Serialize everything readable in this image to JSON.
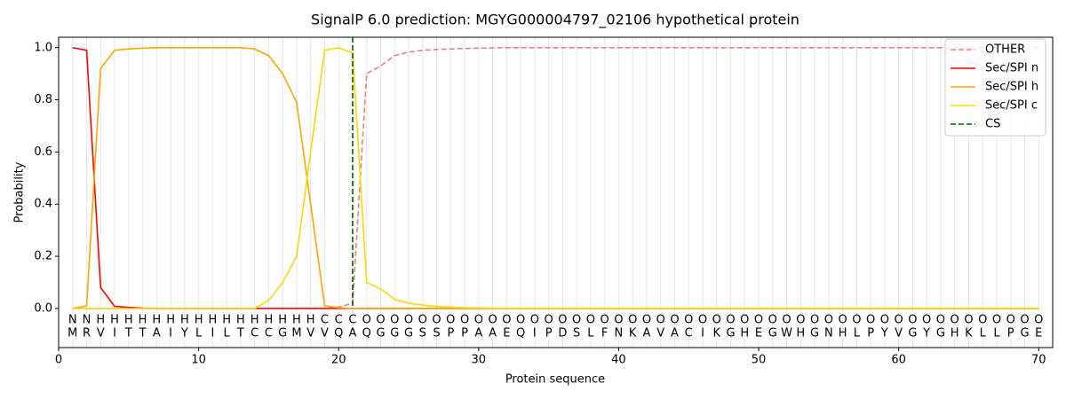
{
  "chart_data": {
    "type": "line",
    "title": "SignalP 6.0 prediction: MGYG000004797_02106 hypothetical protein",
    "xlabel": "Protein sequence",
    "ylabel": "Probability",
    "x": [
      1,
      2,
      3,
      4,
      5,
      6,
      7,
      8,
      9,
      10,
      11,
      12,
      13,
      14,
      15,
      16,
      17,
      18,
      19,
      20,
      21,
      22,
      23,
      24,
      25,
      26,
      27,
      28,
      29,
      30,
      31,
      32,
      33,
      34,
      35,
      36,
      37,
      38,
      39,
      40,
      41,
      42,
      43,
      44,
      45,
      46,
      47,
      48,
      49,
      50,
      51,
      52,
      53,
      54,
      55,
      56,
      57,
      58,
      59,
      60,
      61,
      62,
      63,
      64,
      65,
      66,
      67,
      68,
      69,
      70
    ],
    "sequence": [
      "M",
      "R",
      "V",
      "I",
      "T",
      "T",
      "A",
      "I",
      "Y",
      "L",
      "I",
      "L",
      "T",
      "C",
      "C",
      "G",
      "M",
      "V",
      "V",
      "Q",
      "A",
      "Q",
      "G",
      "G",
      "G",
      "S",
      "S",
      "P",
      "P",
      "A",
      "A",
      "E",
      "Q",
      "I",
      "P",
      "D",
      "S",
      "L",
      "F",
      "N",
      "K",
      "A",
      "V",
      "A",
      "C",
      "I",
      "K",
      "G",
      "H",
      "E",
      "G",
      "W",
      "H",
      "G",
      "N",
      "H",
      "L",
      "P",
      "Y",
      "V",
      "G",
      "Y",
      "G",
      "H",
      "K",
      "L",
      "L",
      "P",
      "G",
      "E"
    ],
    "labels": [
      "N",
      "N",
      "H",
      "H",
      "H",
      "H",
      "H",
      "H",
      "H",
      "H",
      "H",
      "H",
      "H",
      "H",
      "H",
      "H",
      "H",
      "H",
      "C",
      "C",
      "C",
      "O",
      "O",
      "O",
      "O",
      "O",
      "O",
      "O",
      "O",
      "O",
      "O",
      "O",
      "O",
      "O",
      "O",
      "O",
      "O",
      "O",
      "O",
      "O",
      "O",
      "O",
      "O",
      "O",
      "O",
      "O",
      "O",
      "O",
      "O",
      "O",
      "O",
      "O",
      "O",
      "O",
      "O",
      "O",
      "O",
      "O",
      "O",
      "O",
      "O",
      "O",
      "O",
      "O",
      "O",
      "O",
      "O",
      "O",
      "O",
      "O"
    ],
    "label_colors": {
      "N": "#ff0000",
      "H": "#ffa500",
      "C": "#ffd700",
      "O": "#808080"
    },
    "series": [
      {
        "name": "OTHER",
        "color": "#f08080",
        "dashed": true,
        "values": [
          0,
          0,
          0,
          0,
          0,
          0,
          0,
          0,
          0,
          0,
          0,
          0,
          0,
          0,
          0,
          0,
          0,
          0,
          0,
          0.005,
          0.02,
          0.9,
          0.93,
          0.97,
          0.983,
          0.99,
          0.993,
          0.995,
          0.997,
          0.998,
          0.999,
          1,
          1,
          1,
          1,
          1,
          1,
          1,
          1,
          1,
          1,
          1,
          1,
          1,
          1,
          1,
          1,
          1,
          1,
          1,
          1,
          1,
          1,
          1,
          1,
          1,
          1,
          1,
          1,
          1,
          1,
          1,
          1,
          1,
          1,
          1,
          1,
          1,
          1,
          1
        ]
      },
      {
        "name": "Sec/SPI n",
        "color": "#ff0000",
        "values": [
          1,
          0.99,
          0.08,
          0.008,
          0.004,
          0.001,
          0,
          0,
          0,
          0,
          0,
          0,
          0,
          0,
          0,
          0,
          0,
          0,
          0,
          0,
          0,
          0,
          0,
          0,
          0,
          0,
          0,
          0,
          0,
          0,
          0,
          0,
          0,
          0,
          0,
          0,
          0,
          0,
          0,
          0,
          0,
          0,
          0,
          0,
          0,
          0,
          0,
          0,
          0,
          0,
          0,
          0,
          0,
          0,
          0,
          0,
          0,
          0,
          0,
          0,
          0,
          0,
          0,
          0,
          0,
          0,
          0,
          0,
          0,
          0
        ]
      },
      {
        "name": "Sec/SPI h",
        "color": "#ffa500",
        "values": [
          0,
          0.01,
          0.92,
          0.99,
          0.995,
          0.998,
          1,
          1,
          1,
          1,
          1,
          1,
          1,
          0.995,
          0.97,
          0.9,
          0.79,
          0.4,
          0.01,
          0.003,
          0,
          0,
          0,
          0,
          0,
          0,
          0,
          0,
          0,
          0,
          0,
          0,
          0,
          0,
          0,
          0,
          0,
          0,
          0,
          0,
          0,
          0,
          0,
          0,
          0,
          0,
          0,
          0,
          0,
          0,
          0,
          0,
          0,
          0,
          0,
          0,
          0,
          0,
          0,
          0,
          0,
          0,
          0,
          0,
          0,
          0,
          0,
          0,
          0,
          0
        ]
      },
      {
        "name": "Sec/SPI c",
        "color": "#ffd700",
        "values": [
          0,
          0,
          0,
          0,
          0,
          0,
          0,
          0,
          0,
          0,
          0,
          0,
          0,
          0,
          0.03,
          0.1,
          0.2,
          0.6,
          0.99,
          1,
          0.98,
          0.1,
          0.075,
          0.035,
          0.02,
          0.013,
          0.008,
          0.005,
          0.003,
          0.002,
          0.001,
          0,
          0,
          0,
          0,
          0,
          0,
          0,
          0,
          0,
          0,
          0,
          0,
          0,
          0,
          0,
          0,
          0,
          0,
          0,
          0,
          0,
          0,
          0,
          0,
          0,
          0,
          0,
          0,
          0,
          0,
          0,
          0,
          0,
          0,
          0,
          0,
          0,
          0,
          0
        ]
      }
    ],
    "cs_line": {
      "name": "CS",
      "x": 21,
      "color": "#006400"
    },
    "xlim": [
      0,
      71
    ],
    "ylim": [
      -0.15,
      1.04
    ],
    "xticks": [
      0,
      10,
      20,
      30,
      40,
      50,
      60,
      70
    ],
    "yticks": [
      {
        "value": 0,
        "label": "0.0"
      },
      {
        "value": 0.2,
        "label": "0.2"
      },
      {
        "value": 0.4,
        "label": "0.4"
      },
      {
        "value": 0.6,
        "label": "0.6"
      },
      {
        "value": 0.8,
        "label": "0.8"
      },
      {
        "value": 1,
        "label": "1.0"
      }
    ],
    "grid": true,
    "legend": "upper right"
  }
}
